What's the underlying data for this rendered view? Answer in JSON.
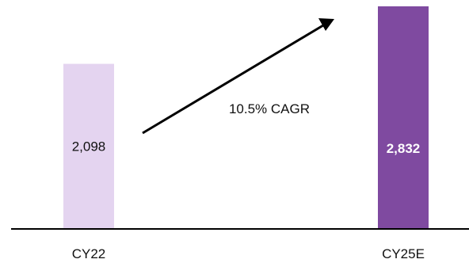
{
  "chart_data": {
    "type": "bar",
    "categories": [
      "CY22",
      "CY25E"
    ],
    "values": [
      2098,
      2832
    ],
    "value_labels": [
      "2,098",
      "2,832"
    ],
    "title": "",
    "xlabel": "",
    "ylabel": "",
    "ylim": [
      0,
      2832
    ],
    "grid": false,
    "annotation": "10.5% CAGR"
  },
  "colors": {
    "bar_cy22": "#e4d4f0",
    "bar_cy25e": "#7f4aa0",
    "label_cy22": "#111111",
    "label_cy25e": "#ffffff",
    "axis": "#000000",
    "arrow": "#000000"
  }
}
